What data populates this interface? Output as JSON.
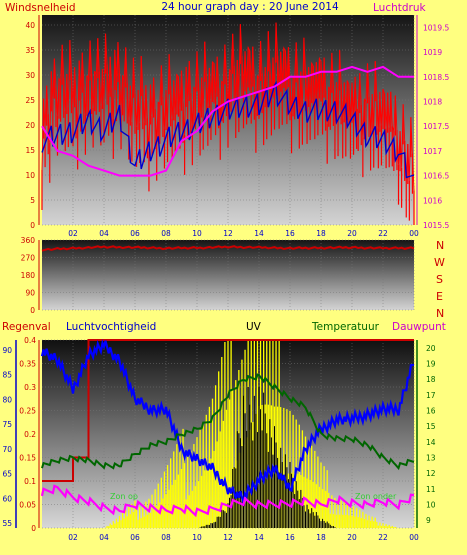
{
  "header": {
    "left_label": "Windsnelheid",
    "title": "24 hour graph day : 20 June 2014",
    "right_label": "Luchtdruk"
  },
  "colors": {
    "background": "#ffff80",
    "wind_speed": "#ff0000",
    "wind_avg": "#0000cc",
    "pressure": "#ff00ff",
    "direction": "#cc0000",
    "rain": "#cc0000",
    "humidity": "#0000ff",
    "temperature": "#006600",
    "uv": "#000000",
    "solar": "#ffff00",
    "dewpoint": "#ff00ff"
  },
  "compass": {
    "labels": [
      "N",
      "W",
      "S",
      "E",
      "N"
    ]
  },
  "legend": {
    "rain": "Regenval",
    "humidity": "Luchtvochtigheid",
    "uv": "UV",
    "temperature": "Temperatuur",
    "dewpoint": "Dauwpunt",
    "zon_op": "Zon op",
    "zon_onder": "Zon onder"
  },
  "chart_data": [
    {
      "type": "line",
      "name": "wind_pressure",
      "x_ticks": [
        "02",
        "04",
        "06",
        "08",
        "10",
        "12",
        "14",
        "16",
        "18",
        "20",
        "22",
        "00"
      ],
      "y_left": {
        "ticks": [
          "0",
          "5",
          "10",
          "15",
          "20",
          "25",
          "30",
          "35",
          "40"
        ],
        "ylim": [
          0,
          42
        ]
      },
      "y_right": {
        "ticks": [
          "1015.5",
          "1016",
          "1016.5",
          "1017",
          "1017.5",
          "1018",
          "1018.5",
          "1019",
          "1019.5"
        ],
        "ylim": [
          1015.5,
          1019.75
        ]
      },
      "x": [
        0,
        1,
        2,
        3,
        4,
        5,
        6,
        7,
        8,
        9,
        10,
        11,
        12,
        13,
        14,
        15,
        16,
        17,
        18,
        19,
        20,
        21,
        22,
        23,
        24
      ],
      "series": [
        {
          "key": "wind_gust",
          "axis": "left",
          "values": [
            21,
            29,
            28,
            31,
            29,
            32,
            25,
            24,
            26,
            27,
            28,
            29,
            31,
            32,
            31,
            32,
            31,
            30,
            29,
            28,
            25,
            26,
            24,
            20,
            12
          ]
        },
        {
          "key": "wind_avg",
          "axis": "left",
          "values": [
            17,
            18,
            19,
            21,
            19,
            22,
            12,
            15,
            17,
            19,
            20,
            22,
            23,
            24,
            24,
            27,
            24,
            23,
            23,
            23,
            21,
            18,
            17,
            15,
            8
          ]
        },
        {
          "key": "pressure",
          "axis": "right",
          "values": [
            1017.5,
            1017.0,
            1016.9,
            1016.7,
            1016.6,
            1016.5,
            1016.5,
            1016.5,
            1016.6,
            1017.2,
            1017.4,
            1017.8,
            1018.0,
            1018.1,
            1018.2,
            1018.3,
            1018.5,
            1018.5,
            1018.6,
            1018.6,
            1018.7,
            1018.6,
            1018.7,
            1018.5,
            1018.5
          ]
        }
      ]
    },
    {
      "type": "line",
      "name": "wind_direction",
      "y_ticks": [
        "360",
        "270",
        "180",
        "90",
        "0"
      ],
      "ylim": [
        0,
        360
      ],
      "x": [
        0,
        2,
        4,
        6,
        8,
        10,
        12,
        14,
        16,
        18,
        20,
        22,
        24
      ],
      "values": [
        310,
        318,
        325,
        322,
        318,
        320,
        325,
        322,
        318,
        320,
        322,
        318,
        320
      ]
    },
    {
      "type": "line",
      "name": "rain_humidity_uv_temp",
      "x_ticks": [
        "02",
        "04",
        "06",
        "08",
        "10",
        "12",
        "14",
        "16",
        "18",
        "20",
        "22",
        "00"
      ],
      "y_rain": {
        "ticks": [
          "0",
          "0.05",
          "0.1",
          "0.15",
          "0.2",
          "0.25",
          "0.3",
          "0.35",
          "0.4"
        ],
        "ylim": [
          0,
          0.4
        ]
      },
      "y_humidity": {
        "ticks": [
          "55",
          "60",
          "65",
          "70",
          "75",
          "80",
          "85",
          "90"
        ],
        "ylim": [
          54,
          92
        ]
      },
      "y_temp": {
        "ticks": [
          "9",
          "10",
          "11",
          "12",
          "13",
          "14",
          "15",
          "16",
          "17",
          "18",
          "19",
          "20"
        ],
        "ylim": [
          8.5,
          20.5
        ]
      },
      "x": [
        0,
        1,
        2,
        3,
        4,
        5,
        6,
        7,
        8,
        9,
        10,
        11,
        12,
        13,
        14,
        15,
        16,
        17,
        18,
        19,
        20,
        21,
        22,
        23,
        24
      ],
      "series": [
        {
          "key": "rain",
          "axis": "rain",
          "values": [
            0.1,
            0.1,
            0.15,
            0.4,
            0.4,
            0.4,
            0.4,
            0.4,
            0.4,
            0.4,
            0.4,
            0.4,
            0.4,
            0.4,
            0.4,
            0.4,
            0.4,
            0.4,
            0.4,
            0.4,
            0.4,
            0.4,
            0.4,
            0.4,
            0.4
          ]
        },
        {
          "key": "humidity",
          "axis": "humidity",
          "values": [
            90,
            88,
            82,
            89,
            91,
            88,
            80,
            78,
            78,
            70,
            68,
            66,
            62,
            60,
            64,
            66,
            62,
            70,
            74,
            76,
            76,
            77,
            78,
            78,
            88
          ]
        },
        {
          "key": "temperature",
          "axis": "temp",
          "values": [
            12.5,
            12.8,
            13.0,
            12.8,
            12.5,
            12.5,
            13.2,
            13.8,
            14.0,
            14.5,
            14.8,
            15.5,
            17.0,
            18.0,
            18.2,
            17.5,
            16.8,
            16.2,
            14.5,
            14.2,
            14.2,
            13.8,
            13.0,
            12.5,
            12.8
          ]
        },
        {
          "key": "dewpoint",
          "axis": "temp",
          "values": [
            10.8,
            11.0,
            10.5,
            10.2,
            9.8,
            9.6,
            10.0,
            9.8,
            9.6,
            9.8,
            9.5,
            9.7,
            10.0,
            10.2,
            10.0,
            10.0,
            10.1,
            10.2,
            10.0,
            10.3,
            10.1,
            10.0,
            10.2,
            10.0,
            10.5
          ]
        },
        {
          "key": "uv",
          "axis": "rain",
          "values": [
            0,
            0,
            0,
            0,
            0,
            0,
            0,
            0,
            0,
            0,
            0,
            0.01,
            0.05,
            0.26,
            0.27,
            0.19,
            0.12,
            0.05,
            0.02,
            0,
            0,
            0,
            0,
            0,
            0
          ]
        },
        {
          "key": "solar",
          "axis": "rain",
          "values": [
            0,
            0,
            0,
            0,
            0,
            0.02,
            0.04,
            0.06,
            0.1,
            0.14,
            0.18,
            0.22,
            0.3,
            0.35,
            0.38,
            0.3,
            0.24,
            0.16,
            0.1,
            0.06,
            0.04,
            0.02,
            0.01,
            0,
            0
          ]
        }
      ]
    }
  ]
}
